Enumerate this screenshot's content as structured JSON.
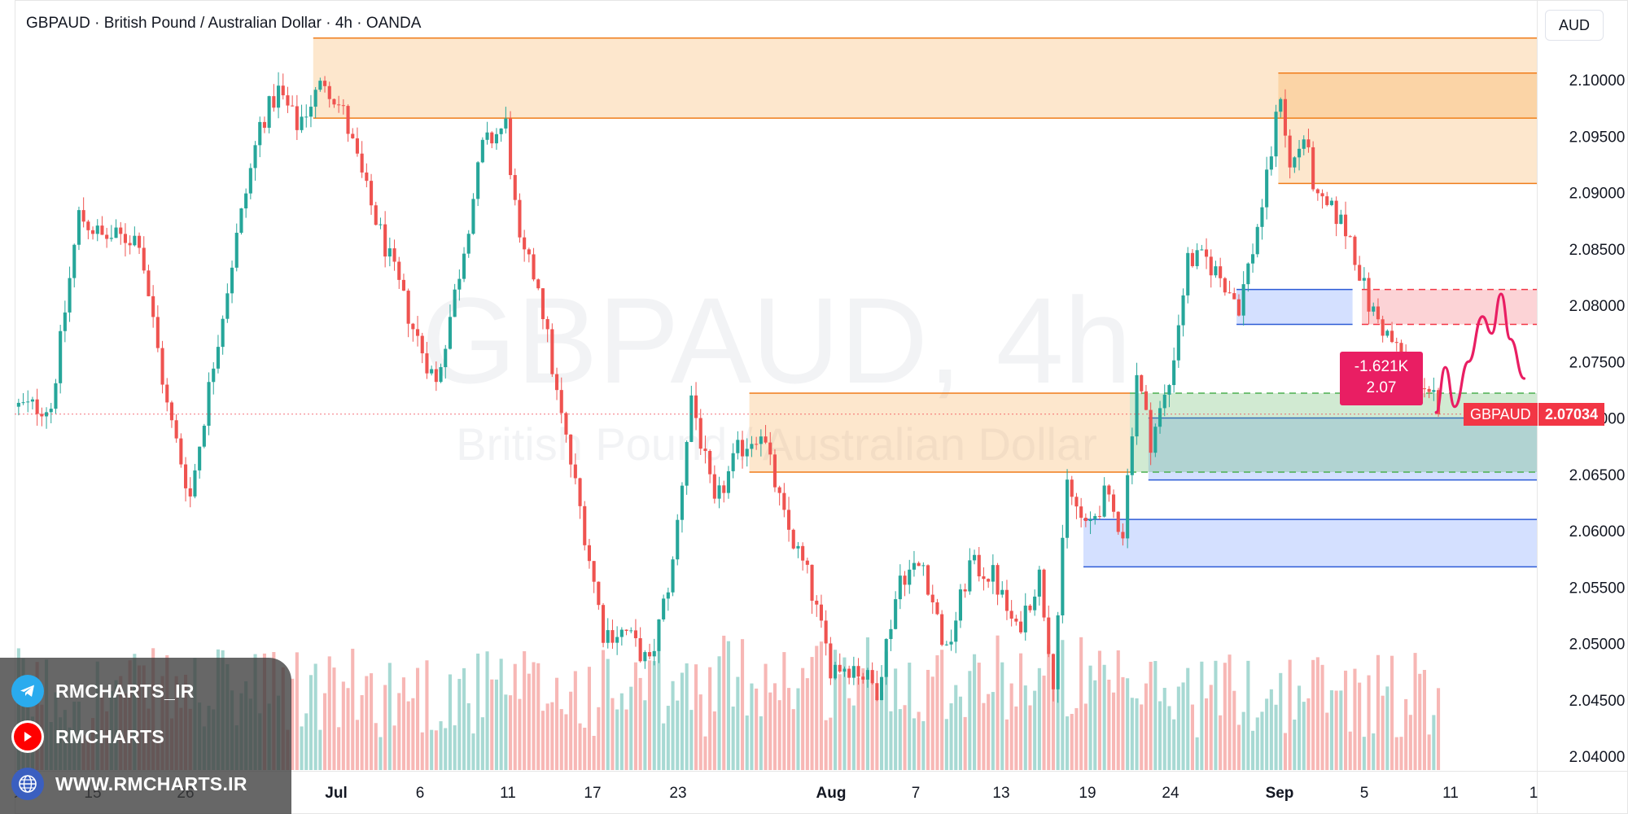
{
  "header": {
    "symbol": "GBPAUD",
    "name": "British Pound / Australian Dollar",
    "interval": "4h",
    "broker": "OANDA",
    "separator": "·"
  },
  "currency_button": "AUD",
  "watermark": {
    "line1": "GBPAUD, 4h",
    "line2": "British Pound / Australian Dollar"
  },
  "price_tag": {
    "symbol": "GBPAUD",
    "price": "2.07034"
  },
  "forecast_label": {
    "volume": "-1.621K",
    "price": "2.07"
  },
  "promo": {
    "telegram": "RMCHARTS_IR",
    "youtube": "RMCHARTS",
    "website": "WWW.RMCHARTS.IR"
  },
  "colors": {
    "up": "#26a69a",
    "down": "#ef5350",
    "supply_zone": "#f7931a",
    "demand_zone": "#2962ff",
    "green_zone": "#4caf50",
    "forecast": "#e91e63"
  },
  "chart_data": {
    "type": "candlestick",
    "instrument": "GBPAUD",
    "timeframe": "4h",
    "ylim": [
      2.0395,
      2.1045
    ],
    "y_ticks": [
      "2.10000",
      "2.09500",
      "2.09000",
      "2.08500",
      "2.08000",
      "2.07500",
      "2.07000",
      "2.06500",
      "2.06000",
      "2.05500",
      "2.05000",
      "2.04500",
      "2.04000"
    ],
    "x_ticks": [
      {
        "label": "0"
      },
      {
        "label": "15"
      },
      {
        "label": "26"
      },
      {
        "label": "Jul"
      },
      {
        "label": "6"
      },
      {
        "label": "11"
      },
      {
        "label": "17"
      },
      {
        "label": "23"
      },
      {
        "label": "Aug"
      },
      {
        "label": "7"
      },
      {
        "label": "13"
      },
      {
        "label": "19"
      },
      {
        "label": "24"
      },
      {
        "label": "Sep"
      },
      {
        "label": "5"
      },
      {
        "label": "11"
      },
      {
        "label": "1"
      }
    ],
    "last_price": 2.07034,
    "price_path": [
      {
        "bar": 0,
        "price": 2.071
      },
      {
        "bar": 7,
        "price": 2.071
      },
      {
        "bar": 13,
        "price": 2.088
      },
      {
        "bar": 18,
        "price": 2.086
      },
      {
        "bar": 26,
        "price": 2.086
      },
      {
        "bar": 32,
        "price": 2.071
      },
      {
        "bar": 37,
        "price": 2.063
      },
      {
        "bar": 42,
        "price": 2.075
      },
      {
        "bar": 47,
        "price": 2.086
      },
      {
        "bar": 52,
        "price": 2.096
      },
      {
        "bar": 56,
        "price": 2.099
      },
      {
        "bar": 60,
        "price": 2.096
      },
      {
        "bar": 66,
        "price": 2.1
      },
      {
        "bar": 70,
        "price": 2.097
      },
      {
        "bar": 75,
        "price": 2.09
      },
      {
        "bar": 80,
        "price": 2.084
      },
      {
        "bar": 85,
        "price": 2.078
      },
      {
        "bar": 90,
        "price": 2.073
      },
      {
        "bar": 95,
        "price": 2.083
      },
      {
        "bar": 100,
        "price": 2.094
      },
      {
        "bar": 105,
        "price": 2.096
      },
      {
        "bar": 108,
        "price": 2.085
      },
      {
        "bar": 112,
        "price": 2.082
      },
      {
        "bar": 116,
        "price": 2.072
      },
      {
        "bar": 121,
        "price": 2.062
      },
      {
        "bar": 126,
        "price": 2.051
      },
      {
        "bar": 131,
        "price": 2.051
      },
      {
        "bar": 136,
        "price": 2.048
      },
      {
        "bar": 141,
        "price": 2.057
      },
      {
        "bar": 145,
        "price": 2.072
      },
      {
        "bar": 150,
        "price": 2.062
      },
      {
        "bar": 155,
        "price": 2.067
      },
      {
        "bar": 160,
        "price": 2.069
      },
      {
        "bar": 165,
        "price": 2.061
      },
      {
        "bar": 170,
        "price": 2.056
      },
      {
        "bar": 175,
        "price": 2.048
      },
      {
        "bar": 180,
        "price": 2.048
      },
      {
        "bar": 185,
        "price": 2.046
      },
      {
        "bar": 190,
        "price": 2.056
      },
      {
        "bar": 195,
        "price": 2.057
      },
      {
        "bar": 200,
        "price": 2.049
      },
      {
        "bar": 205,
        "price": 2.057
      },
      {
        "bar": 210,
        "price": 2.056
      },
      {
        "bar": 215,
        "price": 2.051
      },
      {
        "bar": 220,
        "price": 2.056
      },
      {
        "bar": 223,
        "price": 2.047
      },
      {
        "bar": 226,
        "price": 2.064
      },
      {
        "bar": 230,
        "price": 2.06
      },
      {
        "bar": 234,
        "price": 2.063
      },
      {
        "bar": 238,
        "price": 2.06
      },
      {
        "bar": 241,
        "price": 2.074
      },
      {
        "bar": 244,
        "price": 2.068
      },
      {
        "bar": 248,
        "price": 2.073
      },
      {
        "bar": 252,
        "price": 2.084
      },
      {
        "bar": 256,
        "price": 2.084
      },
      {
        "bar": 260,
        "price": 2.082
      },
      {
        "bar": 263,
        "price": 2.08
      },
      {
        "bar": 266,
        "price": 2.085
      },
      {
        "bar": 269,
        "price": 2.091
      },
      {
        "bar": 272,
        "price": 2.099
      },
      {
        "bar": 274,
        "price": 2.092
      },
      {
        "bar": 277,
        "price": 2.095
      },
      {
        "bar": 280,
        "price": 2.089
      },
      {
        "bar": 284,
        "price": 2.088
      },
      {
        "bar": 287,
        "price": 2.086
      },
      {
        "bar": 291,
        "price": 2.08
      },
      {
        "bar": 294,
        "price": 2.078
      },
      {
        "bar": 297,
        "price": 2.076
      },
      {
        "bar": 300,
        "price": 2.074
      },
      {
        "bar": 303,
        "price": 2.073
      },
      {
        "bar": 306,
        "price": 2.071
      }
    ],
    "zones": [
      {
        "kind": "supply",
        "from_bar": 64,
        "to_bar": "right",
        "top": 2.1037,
        "bottom": 2.0966,
        "dashed": false
      },
      {
        "kind": "supply",
        "from_bar": 272,
        "to_bar": "right",
        "top": 2.1006,
        "bottom": 2.0908,
        "dashed": false
      },
      {
        "kind": "supply",
        "from_bar": 158,
        "to_bar": 240,
        "top": 2.0722,
        "bottom": 2.0652,
        "dashed": false
      },
      {
        "kind": "demand",
        "from_bar": 263,
        "to_bar": 288,
        "top": 2.0814,
        "bottom": 2.0783,
        "dashed": false
      },
      {
        "kind": "demand",
        "from_bar": 244,
        "to_bar": "right",
        "top": 2.07,
        "bottom": 2.0645,
        "dashed": false
      },
      {
        "kind": "demand",
        "from_bar": 230,
        "to_bar": "right",
        "top": 2.061,
        "bottom": 2.0568,
        "dashed": false
      },
      {
        "kind": "target",
        "from_bar": 290,
        "to_bar": "right",
        "top": 2.0814,
        "bottom": 2.0783,
        "dashed": true
      },
      {
        "kind": "green",
        "from_bar": 240,
        "to_bar": "right",
        "top": 2.0722,
        "bottom": 2.0652,
        "dashed": true
      }
    ],
    "forecast_path": [
      {
        "bar": 306,
        "price": 2.0705
      },
      {
        "bar": 308,
        "price": 2.0745
      },
      {
        "bar": 310,
        "price": 2.071
      },
      {
        "bar": 313,
        "price": 2.075
      },
      {
        "bar": 316,
        "price": 2.079
      },
      {
        "bar": 318,
        "price": 2.0775
      },
      {
        "bar": 320,
        "price": 2.081
      },
      {
        "bar": 322,
        "price": 2.077
      },
      {
        "bar": 325,
        "price": 2.0735
      }
    ]
  }
}
